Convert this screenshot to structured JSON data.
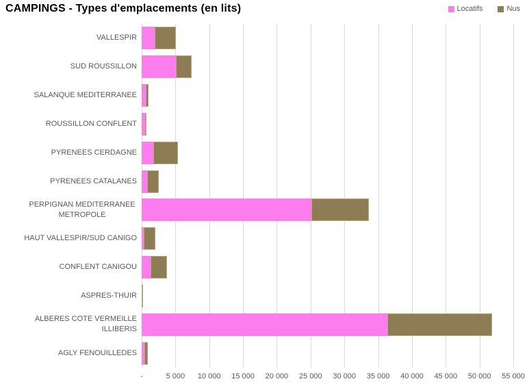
{
  "title": "CAMPINGS - Types d'emplacements (en lits)",
  "colors": {
    "locatifs": "#FE7DEE",
    "nus": "#8E7C55",
    "nus_border": "#b7a87e",
    "title_text": "#000000",
    "axis_text": "#595959",
    "gridline": "#d9d9d9",
    "background": "#ffffff"
  },
  "legend": {
    "position": "top-right",
    "items": [
      {
        "label": "Locatifs",
        "color": "#FE7DEE"
      },
      {
        "label": "Nus",
        "color": "#8E7C55"
      }
    ]
  },
  "chart_data": {
    "type": "bar",
    "orientation": "horizontal",
    "stacked": true,
    "title": "CAMPINGS - Types d'emplacements (en lits)",
    "categories": [
      "VALLESPIR",
      "SUD ROUSSILLON",
      "SALANQUE MEDITERRANEE",
      "ROUSSILLON CONFLENT",
      "PYRENEES CERDAGNE",
      "PYRENEES CATALANES",
      "PERPIGNAN MEDITERRANEE\nMETROPOLE",
      "HAUT VALLESPIR/SUD CANIGO",
      "CONFLENT CANIGOU",
      "ASPRES-THUIR",
      "ALBERES COTE VERMEILLE ILLIBERIS",
      "AGLY FENOUILLEDES"
    ],
    "series": [
      {
        "name": "Locatifs",
        "color": "#FE7DEE",
        "values": [
          1950,
          5100,
          600,
          550,
          1700,
          800,
          25100,
          300,
          1300,
          0,
          36400,
          400
        ]
      },
      {
        "name": "Nus",
        "color": "#8E7C55",
        "values": [
          3150,
          2250,
          400,
          150,
          3700,
          1700,
          8500,
          1750,
          2450,
          150,
          15500,
          550
        ]
      }
    ],
    "xlabel": "",
    "ylabel": "",
    "xlim": [
      0,
      55000
    ],
    "x_tick_step": 5000,
    "x_tick_labels": [
      "-",
      "5 000",
      "10 000",
      "15 000",
      "20 000",
      "25 000",
      "30 000",
      "35 000",
      "40 000",
      "45 000",
      "50 000",
      "55 000"
    ],
    "grid": true,
    "legend_position": "top-right"
  }
}
